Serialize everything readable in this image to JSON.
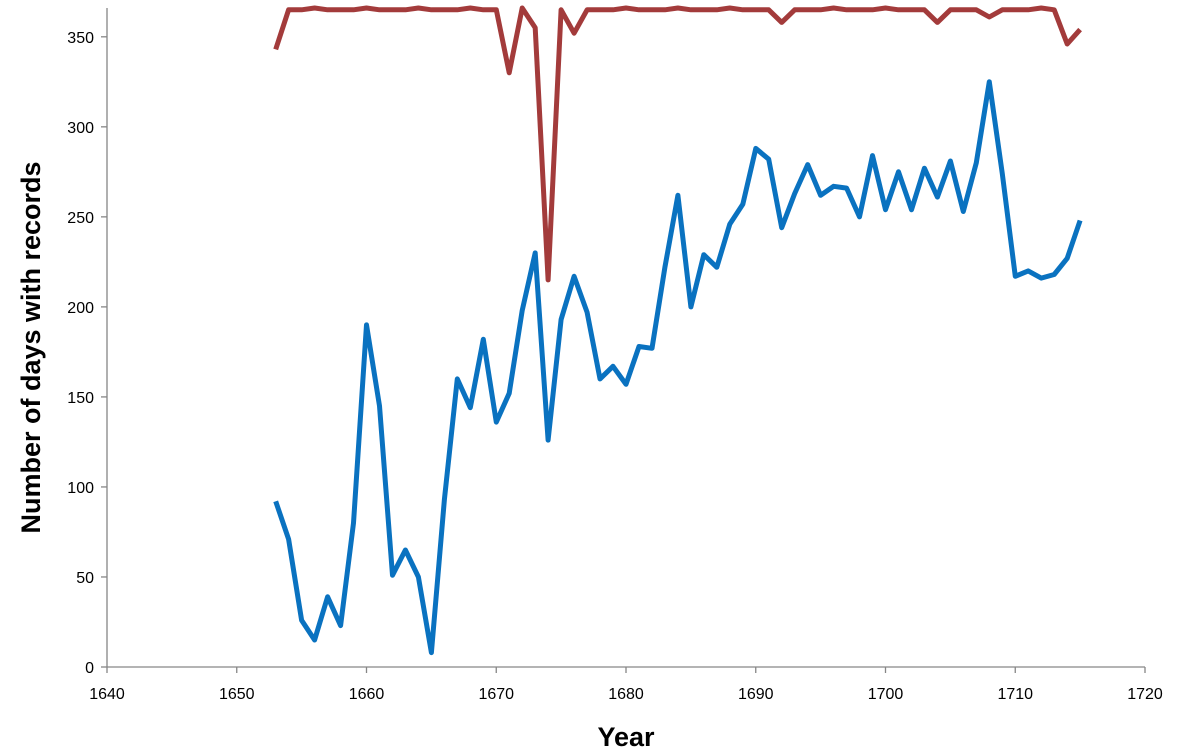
{
  "chart_data": {
    "type": "line",
    "title": "",
    "xlabel": "Year",
    "ylabel": "Number of days with records",
    "xlim": [
      1640,
      1720
    ],
    "ylim": [
      0,
      366
    ],
    "x_ticks": [
      1640,
      1650,
      1660,
      1670,
      1680,
      1690,
      1700,
      1710,
      1720
    ],
    "y_ticks": [
      0,
      50,
      100,
      150,
      200,
      250,
      300,
      350
    ],
    "grid": false,
    "legend": "none",
    "x": [
      1653,
      1654,
      1655,
      1656,
      1657,
      1658,
      1659,
      1660,
      1661,
      1662,
      1663,
      1664,
      1665,
      1666,
      1667,
      1668,
      1669,
      1670,
      1671,
      1672,
      1673,
      1674,
      1675,
      1676,
      1677,
      1678,
      1679,
      1680,
      1681,
      1682,
      1683,
      1684,
      1685,
      1686,
      1687,
      1688,
      1689,
      1690,
      1691,
      1692,
      1693,
      1694,
      1695,
      1696,
      1697,
      1698,
      1699,
      1700,
      1701,
      1702,
      1703,
      1704,
      1705,
      1706,
      1707,
      1708,
      1709,
      1710,
      1711,
      1712,
      1713,
      1714,
      1715
    ],
    "series": [
      {
        "color": "#a33b3b",
        "values": [
          343,
          365,
          365,
          366,
          365,
          365,
          365,
          366,
          365,
          365,
          365,
          366,
          365,
          365,
          365,
          366,
          365,
          365,
          330,
          366,
          355,
          215,
          365,
          352,
          365,
          365,
          365,
          366,
          365,
          365,
          365,
          366,
          365,
          365,
          365,
          366,
          365,
          365,
          365,
          358,
          365,
          365,
          365,
          366,
          365,
          365,
          365,
          366,
          365,
          365,
          365,
          358,
          365,
          365,
          365,
          361,
          365,
          365,
          365,
          366,
          365,
          346,
          354
        ]
      },
      {
        "color": "#0a72c0",
        "values": [
          92,
          71,
          26,
          15,
          39,
          23,
          80,
          190,
          145,
          51,
          65,
          50,
          8,
          93,
          160,
          144,
          182,
          136,
          152,
          198,
          230,
          126,
          193,
          217,
          197,
          160,
          167,
          157,
          178,
          177,
          222,
          262,
          200,
          229,
          222,
          246,
          257,
          288,
          282,
          244,
          263,
          279,
          262,
          267,
          266,
          250,
          284,
          254,
          275,
          254,
          277,
          261,
          281,
          253,
          280,
          325,
          274,
          217,
          220,
          216,
          218,
          227,
          248
        ]
      }
    ]
  }
}
